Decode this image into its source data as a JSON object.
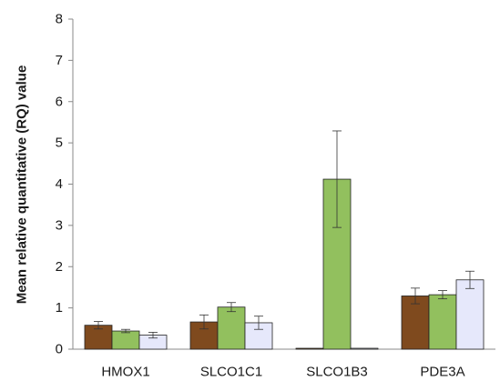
{
  "chart_data": {
    "type": "bar",
    "title": "",
    "xlabel": "",
    "ylabel": "Mean relative quantitative (RQ) value",
    "ylim": [
      0,
      8
    ],
    "yticks": [
      0,
      1,
      2,
      3,
      4,
      5,
      6,
      7,
      8
    ],
    "grid": false,
    "legend": "none",
    "categories": [
      "HMOX1",
      "SLCO1C1",
      "SLCO1B3",
      "PDE3A"
    ],
    "series": [
      {
        "color": "#7f4a1e",
        "values": [
          0.58,
          0.66,
          0.02,
          1.29
        ],
        "errors": [
          0.09,
          0.17,
          0.0,
          0.19
        ]
      },
      {
        "color": "#92c05e",
        "values": [
          0.44,
          1.02,
          4.12,
          1.32
        ],
        "errors": [
          0.04,
          0.11,
          1.17,
          0.1
        ]
      },
      {
        "color": "#e6e8fb",
        "values": [
          0.34,
          0.64,
          0.02,
          1.68
        ],
        "errors": [
          0.07,
          0.16,
          0.0,
          0.21
        ]
      }
    ]
  }
}
